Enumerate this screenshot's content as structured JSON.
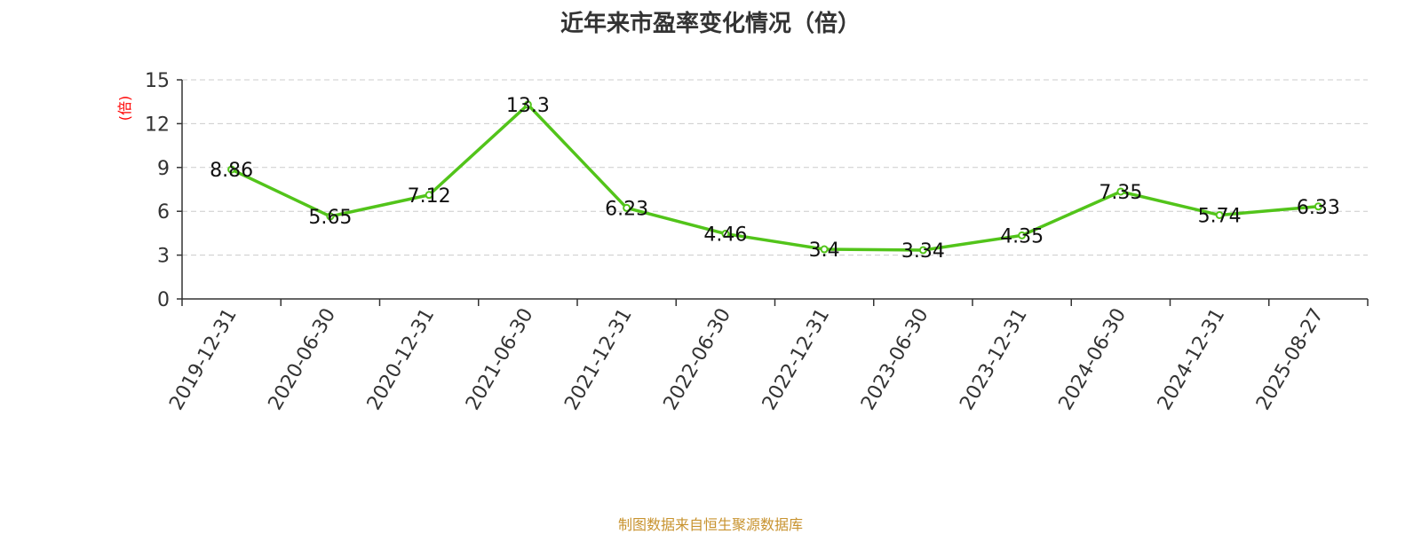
{
  "source_note": "制图数据来自恒生聚源数据库",
  "colors": {
    "line": "#52c41a",
    "unit_label": "#ff0000",
    "source_note": "#c8932f"
  },
  "chart_data": {
    "type": "line",
    "title": "近年来市盈率变化情况（倍）",
    "ylabel": "(倍)",
    "xlabel": "",
    "categories": [
      "2019-12-31",
      "2020-06-30",
      "2020-12-31",
      "2021-06-30",
      "2021-12-31",
      "2022-06-30",
      "2022-12-31",
      "2023-06-30",
      "2023-12-31",
      "2024-06-30",
      "2024-12-31",
      "2025-08-27"
    ],
    "series": [
      {
        "values": [
          8.86,
          5.65,
          7.12,
          13.3,
          6.23,
          4.46,
          3.4,
          3.34,
          4.35,
          7.35,
          5.74,
          6.33
        ],
        "labels": [
          "8.86",
          "5.65",
          "7.12",
          "13.3",
          "6.23",
          "4.46",
          "3.4",
          "3.34",
          "4.35",
          "7.35",
          "5.74",
          "6.33"
        ]
      }
    ],
    "ylim": [
      0,
      15
    ],
    "yticks": [
      0,
      3,
      6,
      9,
      12,
      15
    ],
    "grid": true,
    "legend": "none"
  }
}
